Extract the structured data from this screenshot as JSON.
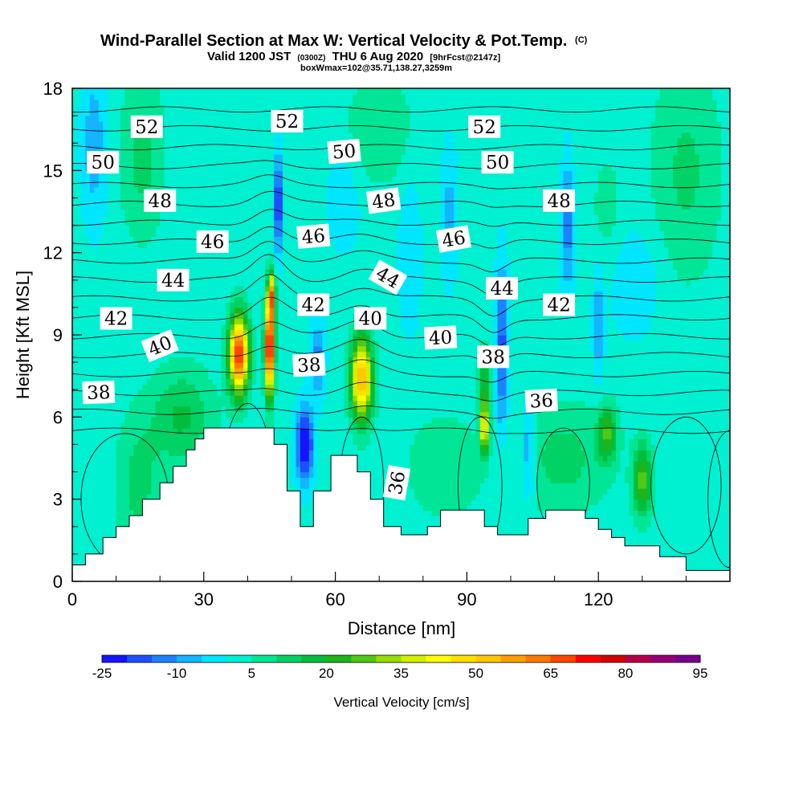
{
  "chart_data": {
    "type": "heatmap",
    "title": "Wind-Parallel Section at Max W: Vertical Velocity & Pot.Temp.",
    "title_mark": "(C)",
    "subtitle_parts": [
      "Valid 1200 JST",
      "(0300Z)",
      "THU 6 Aug 2020",
      "[9hrFcst@2147z]"
    ],
    "subtitle2": "boxWmax=102@35.71,138.27,3259m",
    "xlabel": "Distance [nm]",
    "ylabel": "Height [Kft MSL]",
    "xlim": [
      0,
      150
    ],
    "ylim": [
      0,
      18
    ],
    "x_ticks": [
      "0",
      "30",
      "60",
      "90",
      "120"
    ],
    "y_ticks": [
      "0",
      "3",
      "6",
      "9",
      "12",
      "15",
      "18"
    ],
    "colorbar": {
      "label": "Vertical Velocity [cm/s]",
      "tick_labels": [
        "-25",
        "-10",
        "5",
        "20",
        "35",
        "50",
        "65",
        "80",
        "95"
      ],
      "min": -25,
      "max": 95,
      "step": 5,
      "colors": [
        "#1414ff",
        "#1e50ff",
        "#1e82ff",
        "#14b4ff",
        "#00e6ff",
        "#00f0d2",
        "#00e696",
        "#00d264",
        "#00be3c",
        "#1eb41e",
        "#50c814",
        "#96dc00",
        "#d2f000",
        "#ffff00",
        "#ffe100",
        "#ffc800",
        "#ffa000",
        "#ff7800",
        "#ff4600",
        "#ff0000",
        "#d20000",
        "#b4004b",
        "#960078",
        "#78008c"
      ]
    },
    "terrain": [
      [
        0,
        0.6
      ],
      [
        3,
        0.6
      ],
      [
        3,
        1.0
      ],
      [
        7,
        1.0
      ],
      [
        7,
        1.6
      ],
      [
        10,
        1.6
      ],
      [
        10,
        2.0
      ],
      [
        13,
        2.0
      ],
      [
        13,
        2.4
      ],
      [
        16,
        2.4
      ],
      [
        16,
        3.0
      ],
      [
        20,
        3.0
      ],
      [
        20,
        3.6
      ],
      [
        23,
        3.6
      ],
      [
        23,
        4.2
      ],
      [
        26,
        4.2
      ],
      [
        26,
        4.8
      ],
      [
        28,
        4.8
      ],
      [
        28,
        5.2
      ],
      [
        30,
        5.2
      ],
      [
        30,
        5.6
      ],
      [
        46,
        5.6
      ],
      [
        46,
        5.0
      ],
      [
        49,
        5.0
      ],
      [
        49,
        3.3
      ],
      [
        52,
        3.3
      ],
      [
        52,
        2.0
      ],
      [
        55,
        2.0
      ],
      [
        55,
        3.3
      ],
      [
        59,
        3.3
      ],
      [
        59,
        4.6
      ],
      [
        65,
        4.6
      ],
      [
        65,
        4.0
      ],
      [
        68,
        4.0
      ],
      [
        68,
        3.0
      ],
      [
        71,
        3.0
      ],
      [
        71,
        2.0
      ],
      [
        75,
        2.0
      ],
      [
        75,
        1.7
      ],
      [
        81,
        1.7
      ],
      [
        81,
        2.0
      ],
      [
        84,
        2.0
      ],
      [
        84,
        2.6
      ],
      [
        94,
        2.6
      ],
      [
        94,
        2.0
      ],
      [
        97,
        2.0
      ],
      [
        97,
        1.7
      ],
      [
        104,
        1.7
      ],
      [
        104,
        2.3
      ],
      [
        108,
        2.3
      ],
      [
        108,
        2.6
      ],
      [
        117,
        2.6
      ],
      [
        117,
        2.3
      ],
      [
        120,
        2.3
      ],
      [
        120,
        1.9
      ],
      [
        123,
        1.9
      ],
      [
        123,
        1.6
      ],
      [
        126,
        1.6
      ],
      [
        126,
        1.3
      ],
      [
        134,
        1.3
      ],
      [
        134,
        0.9
      ],
      [
        140,
        0.9
      ],
      [
        140,
        0.4
      ],
      [
        150,
        0.4
      ]
    ],
    "theta_contour_labels": [
      {
        "text": "52",
        "x": 17,
        "y": 16.6,
        "rot": 0
      },
      {
        "text": "52",
        "x": 49,
        "y": 16.8,
        "rot": 0
      },
      {
        "text": "52",
        "x": 94,
        "y": 16.6,
        "rot": 0
      },
      {
        "text": "50",
        "x": 7,
        "y": 15.3,
        "rot": 0
      },
      {
        "text": "50",
        "x": 62,
        "y": 15.7,
        "rot": -5
      },
      {
        "text": "50",
        "x": 97,
        "y": 15.3,
        "rot": 0
      },
      {
        "text": "48",
        "x": 20,
        "y": 13.9,
        "rot": 0
      },
      {
        "text": "48",
        "x": 71,
        "y": 13.9,
        "rot": -8
      },
      {
        "text": "48",
        "x": 111,
        "y": 13.9,
        "rot": 0
      },
      {
        "text": "46",
        "x": 32,
        "y": 12.4,
        "rot": 0
      },
      {
        "text": "46",
        "x": 55,
        "y": 12.6,
        "rot": -5
      },
      {
        "text": "46",
        "x": 87,
        "y": 12.5,
        "rot": -10
      },
      {
        "text": "44",
        "x": 23,
        "y": 11.0,
        "rot": 0
      },
      {
        "text": "44",
        "x": 72,
        "y": 11.1,
        "rot": 30
      },
      {
        "text": "44",
        "x": 98,
        "y": 10.7,
        "rot": 0
      },
      {
        "text": "42",
        "x": 10,
        "y": 9.6,
        "rot": 0
      },
      {
        "text": "42",
        "x": 55,
        "y": 10.1,
        "rot": 0
      },
      {
        "text": "42",
        "x": 111,
        "y": 10.1,
        "rot": 0
      },
      {
        "text": "40",
        "x": 20,
        "y": 8.6,
        "rot": -22
      },
      {
        "text": "40",
        "x": 68,
        "y": 9.6,
        "rot": 0
      },
      {
        "text": "40",
        "x": 84,
        "y": 8.9,
        "rot": -3
      },
      {
        "text": "38",
        "x": 6,
        "y": 6.9,
        "rot": -2
      },
      {
        "text": "38",
        "x": 54,
        "y": 7.9,
        "rot": -3
      },
      {
        "text": "38",
        "x": 96,
        "y": 8.2,
        "rot": 0
      },
      {
        "text": "36",
        "x": 107,
        "y": 6.6,
        "rot": -3
      },
      {
        "text": "36",
        "x": 74,
        "y": 3.6,
        "rot": -80
      }
    ]
  }
}
